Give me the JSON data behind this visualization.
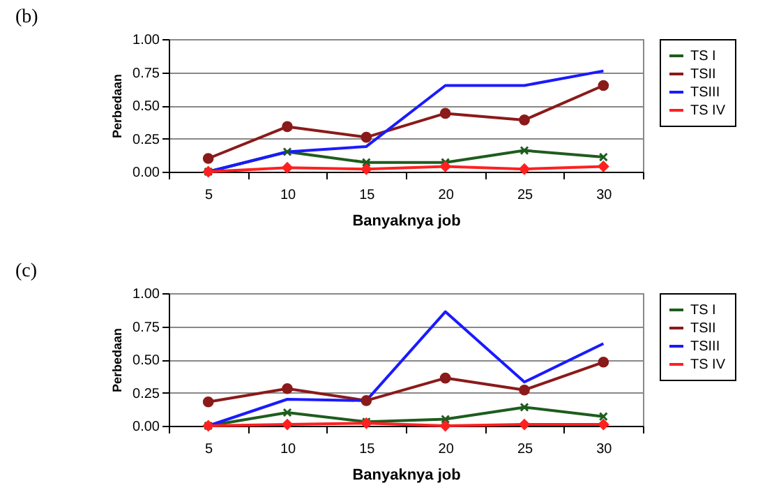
{
  "chart_data": [
    {
      "type": "line",
      "title": "(b)",
      "xlabel": "Banyaknya job",
      "ylabel": "Perbedaan",
      "categories": [
        "5",
        "10",
        "15",
        "20",
        "25",
        "30"
      ],
      "series": [
        {
          "name": "TS I",
          "color": "#1e5c1e",
          "marker": "cross",
          "values": [
            0,
            0.15,
            0.07,
            0.07,
            0.16,
            0.11
          ]
        },
        {
          "name": "TSII",
          "color": "#8b1a1a",
          "marker": "circle",
          "values": [
            0.1,
            0.34,
            0.26,
            0.44,
            0.39,
            0.65
          ]
        },
        {
          "name": "TSIII",
          "color": "#1a1aff",
          "marker": "none",
          "values": [
            0,
            0.15,
            0.19,
            0.65,
            0.65,
            0.76
          ]
        },
        {
          "name": "TS IV",
          "color": "#ff2020",
          "marker": "diamond",
          "values": [
            0,
            0.03,
            0.02,
            0.04,
            0.02,
            0.04
          ]
        }
      ],
      "ylim": [
        0,
        1
      ],
      "yticks": [
        {
          "value": 0,
          "label": "0.00"
        },
        {
          "value": 0.25,
          "label": "0.25"
        },
        {
          "value": 0.5,
          "label": "0.50"
        },
        {
          "value": 0.75,
          "label": "0.75"
        },
        {
          "value": 1,
          "label": "1.00"
        }
      ],
      "grid": "y",
      "legend": "right"
    },
    {
      "type": "line",
      "title": "(c)",
      "xlabel": "Banyaknya job",
      "ylabel": "Perbedaan",
      "categories": [
        "5",
        "10",
        "15",
        "20",
        "25",
        "30"
      ],
      "series": [
        {
          "name": "TS I",
          "color": "#1e5c1e",
          "marker": "cross",
          "values": [
            0,
            0.1,
            0.03,
            0.05,
            0.14,
            0.07
          ]
        },
        {
          "name": "TSII",
          "color": "#8b1a1a",
          "marker": "circle",
          "values": [
            0.18,
            0.28,
            0.19,
            0.36,
            0.27,
            0.48
          ]
        },
        {
          "name": "TSIII",
          "color": "#1a1aff",
          "marker": "none",
          "values": [
            0,
            0.2,
            0.19,
            0.86,
            0.33,
            0.62
          ]
        },
        {
          "name": "TS IV",
          "color": "#ff2020",
          "marker": "diamond",
          "values": [
            0,
            0.01,
            0.02,
            0,
            0.01,
            0.01
          ]
        }
      ],
      "ylim": [
        0,
        1
      ],
      "yticks": [
        {
          "value": 0,
          "label": "0.00"
        },
        {
          "value": 0.25,
          "label": "0.25"
        },
        {
          "value": 0.5,
          "label": "0.50"
        },
        {
          "value": 0.75,
          "label": "0.75"
        },
        {
          "value": 1,
          "label": "1.00"
        }
      ],
      "grid": "y",
      "legend": "right"
    }
  ]
}
